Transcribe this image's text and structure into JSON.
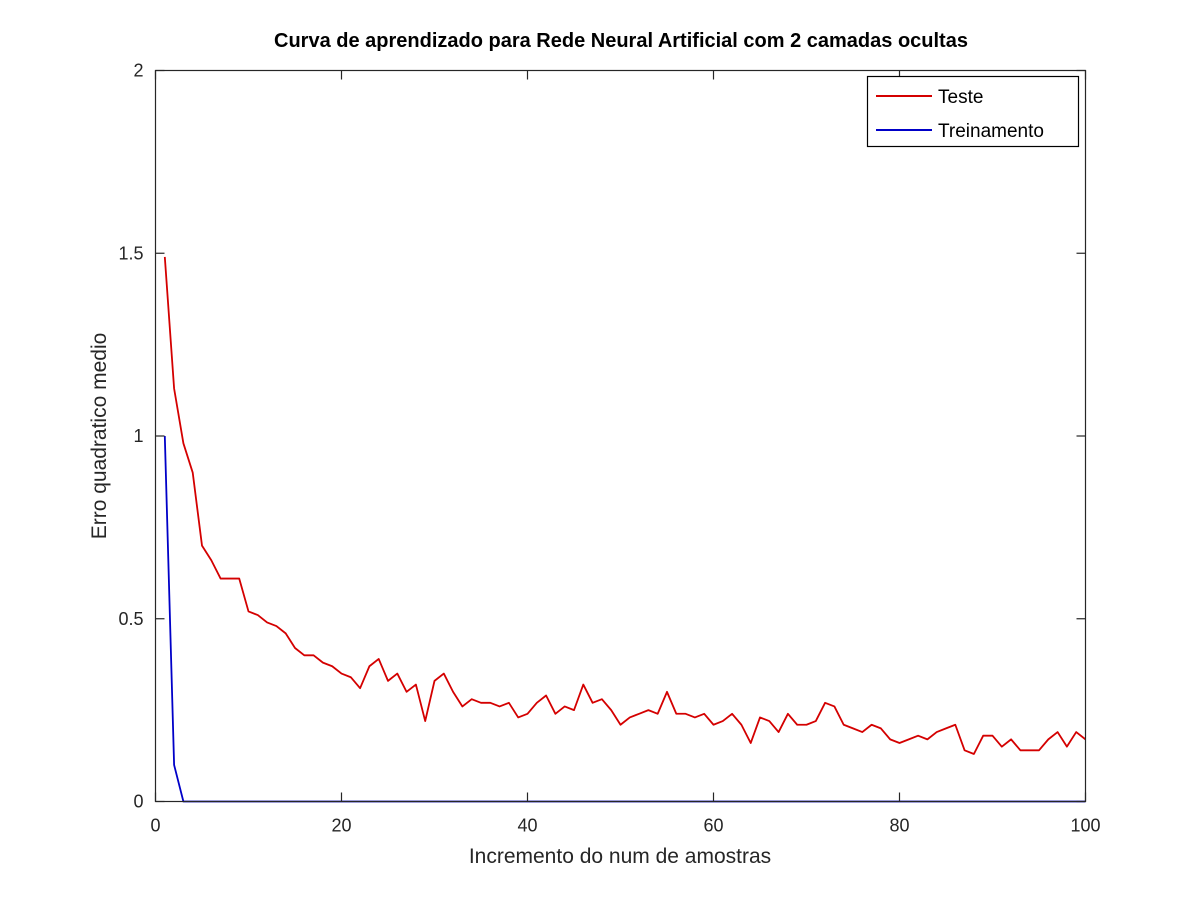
{
  "chart_data": {
    "type": "line",
    "title": "Curva de aprendizado para Rede Neural Artificial com 2 camadas ocultas",
    "xlabel": "Incremento do num de amostras",
    "ylabel": "Erro quadratico medio",
    "xlim": [
      0,
      100
    ],
    "ylim": [
      0,
      2
    ],
    "xticks": [
      0,
      20,
      40,
      60,
      80,
      100
    ],
    "yticks": [
      0,
      0.5,
      1,
      1.5,
      2
    ],
    "xtick_labels": [
      "0",
      "20",
      "40",
      "60",
      "80",
      "100"
    ],
    "ytick_labels": [
      "0",
      "0.5",
      "1",
      "1.5",
      "2"
    ],
    "grid": false,
    "legend_position": "top-right",
    "x": [
      1,
      2,
      3,
      4,
      5,
      6,
      7,
      8,
      9,
      10,
      11,
      12,
      13,
      14,
      15,
      16,
      17,
      18,
      19,
      20,
      21,
      22,
      23,
      24,
      25,
      26,
      27,
      28,
      29,
      30,
      31,
      32,
      33,
      34,
      35,
      36,
      37,
      38,
      39,
      40,
      41,
      42,
      43,
      44,
      45,
      46,
      47,
      48,
      49,
      50,
      51,
      52,
      53,
      54,
      55,
      56,
      57,
      58,
      59,
      60,
      61,
      62,
      63,
      64,
      65,
      66,
      67,
      68,
      69,
      70,
      71,
      72,
      73,
      74,
      75,
      76,
      77,
      78,
      79,
      80,
      81,
      82,
      83,
      84,
      85,
      86,
      87,
      88,
      89,
      90,
      91,
      92,
      93,
      94,
      95,
      96,
      97,
      98,
      99,
      100
    ],
    "series": [
      {
        "name": "Teste",
        "color": "#d40000",
        "values": [
          1.49,
          1.13,
          0.98,
          0.9,
          0.7,
          0.66,
          0.61,
          0.61,
          0.61,
          0.52,
          0.51,
          0.49,
          0.48,
          0.46,
          0.42,
          0.4,
          0.4,
          0.38,
          0.37,
          0.35,
          0.34,
          0.31,
          0.37,
          0.39,
          0.33,
          0.35,
          0.3,
          0.32,
          0.22,
          0.33,
          0.35,
          0.3,
          0.26,
          0.28,
          0.27,
          0.27,
          0.26,
          0.27,
          0.23,
          0.24,
          0.27,
          0.29,
          0.24,
          0.26,
          0.25,
          0.32,
          0.27,
          0.28,
          0.25,
          0.21,
          0.23,
          0.24,
          0.25,
          0.24,
          0.3,
          0.24,
          0.24,
          0.23,
          0.24,
          0.21,
          0.22,
          0.24,
          0.21,
          0.16,
          0.23,
          0.22,
          0.19,
          0.24,
          0.21,
          0.21,
          0.22,
          0.27,
          0.26,
          0.21,
          0.2,
          0.19,
          0.21,
          0.2,
          0.17,
          0.16,
          0.17,
          0.18,
          0.17,
          0.19,
          0.2,
          0.21,
          0.14,
          0.13,
          0.18,
          0.18,
          0.15,
          0.17,
          0.14,
          0.14,
          0.14,
          0.17,
          0.19,
          0.15,
          0.19,
          0.17
        ]
      },
      {
        "name": "Treinamento",
        "color": "#0000c8",
        "values": [
          1.0,
          0.1,
          0,
          0,
          0,
          0,
          0,
          0,
          0,
          0,
          0,
          0,
          0,
          0,
          0,
          0,
          0,
          0,
          0,
          0,
          0,
          0,
          0,
          0,
          0,
          0,
          0,
          0,
          0,
          0,
          0,
          0,
          0,
          0,
          0,
          0,
          0,
          0,
          0,
          0,
          0,
          0,
          0,
          0,
          0,
          0,
          0,
          0,
          0,
          0,
          0,
          0,
          0,
          0,
          0,
          0,
          0,
          0,
          0,
          0,
          0,
          0,
          0,
          0,
          0,
          0,
          0,
          0,
          0,
          0,
          0,
          0,
          0,
          0,
          0,
          0,
          0,
          0,
          0,
          0,
          0,
          0,
          0,
          0,
          0,
          0,
          0,
          0,
          0,
          0,
          0,
          0,
          0,
          0,
          0,
          0,
          0,
          0,
          0,
          0
        ]
      }
    ]
  }
}
